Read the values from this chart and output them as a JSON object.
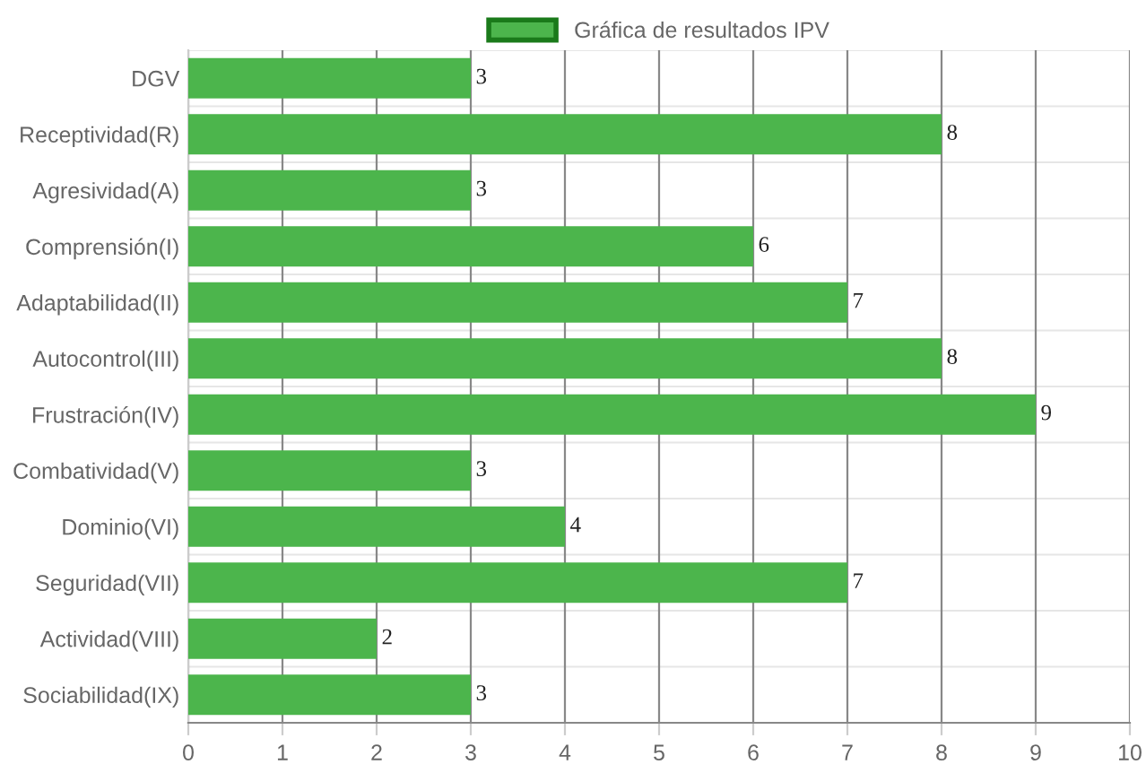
{
  "chart_data": {
    "type": "bar",
    "orientation": "horizontal",
    "categories": [
      "DGV",
      "Receptividad(R)",
      "Agresividad(A)",
      "Comprensión(I)",
      "Adaptabilidad(II)",
      "Autocontrol(III)",
      "Frustración(IV)",
      "Combatividad(V)",
      "Dominio(VI)",
      "Seguridad(VII)",
      "Actividad(VIII)",
      "Sociabilidad(IX)"
    ],
    "series": [
      {
        "name": "Gráfica de resultados IPV",
        "color": "#4cb54c",
        "values": [
          3,
          8,
          3,
          6,
          7,
          8,
          9,
          3,
          4,
          7,
          2,
          3
        ]
      }
    ],
    "xlim": [
      0,
      10
    ],
    "xticks": [
      0,
      1,
      2,
      3,
      4,
      5,
      6,
      7,
      8,
      9,
      10
    ],
    "data_labels": true,
    "grid": true,
    "legend": "top"
  }
}
